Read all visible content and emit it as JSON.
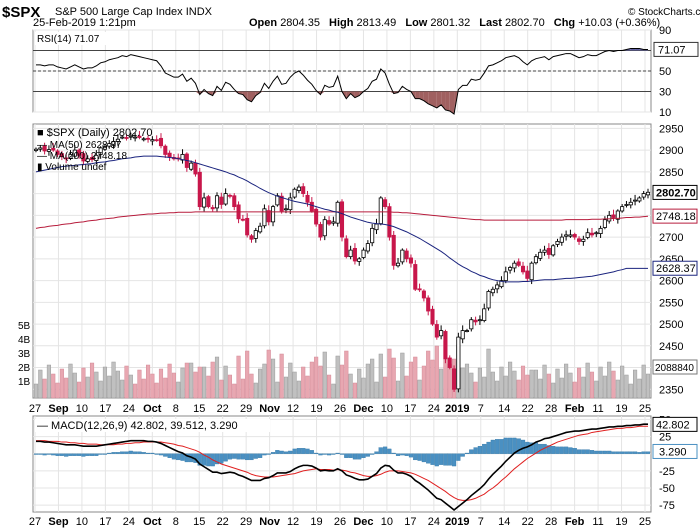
{
  "header": {
    "symbol": "$SPX",
    "name": "S&P 500 Large Cap Index",
    "exchange": "INDX",
    "date": "25-Feb-2019 1:21pm",
    "open_label": "Open",
    "open": "2804.35",
    "high_label": "High",
    "high": "2813.49",
    "low_label": "Low",
    "low": "2801.32",
    "last_label": "Last",
    "last": "2802.70",
    "chg_label": "Chg",
    "chg": "+10.03 (+0.36%)",
    "watermark": "© StockCharts.com"
  },
  "colors": {
    "up": "#ffffff",
    "down": "#c8174b",
    "ma50": "#1a237e",
    "ma200": "#b71c3c",
    "vol_up": "#c0c0c0",
    "vol_down": "#e8a7b1",
    "rsi_line": "#000000",
    "macd_line": "#000000",
    "signal_line": "#e02020",
    "hist": "#4a90c2"
  },
  "chart_data": {
    "type": "candlestick",
    "x_tick_labels": [
      "27",
      "Sep",
      "10",
      "17",
      "24",
      "Oct",
      "8",
      "15",
      "22",
      "29",
      "Nov",
      "12",
      "19",
      "26",
      "Dec",
      "10",
      "17",
      "24",
      "2019",
      "7",
      "14",
      "22",
      "28",
      "Feb",
      "11",
      "19",
      "25"
    ],
    "price_panel": {
      "legend": {
        "main": "$SPX (Daily) 2802.70",
        "ma50": "MA(50) 2628.37",
        "ma200": "MA(200) 2748.18",
        "volume": "Volume undef"
      },
      "y_ticks": [
        2350,
        2400,
        2450,
        2500,
        2550,
        2600,
        2650,
        2700,
        2750,
        2800,
        2850,
        2900,
        2950
      ],
      "y_range": [
        2330,
        2960
      ],
      "tags": {
        "last": "2802.70",
        "ma200": "2748.18",
        "ma50": "2628.37"
      },
      "volume_ticks": [
        "5B",
        "4B",
        "3B",
        "2B",
        "1B"
      ],
      "volume_tag": "2088840",
      "closes": [
        2902,
        2905,
        2898,
        2901,
        2900,
        2890,
        2885,
        2880,
        2890,
        2900,
        2888,
        2875,
        2880,
        2878,
        2888,
        2905,
        2908,
        2915,
        2920,
        2925,
        2930,
        2928,
        2932,
        2930,
        2929,
        2926,
        2925,
        2924,
        2923,
        2910,
        2890,
        2885,
        2880,
        2880,
        2890,
        2860,
        2870,
        2845,
        2770,
        2790,
        2770,
        2765,
        2795,
        2775,
        2800,
        2795,
        2770,
        2742,
        2740,
        2705,
        2695,
        2715,
        2725,
        2765,
        2735,
        2770,
        2795,
        2760,
        2765,
        2790,
        2810,
        2815,
        2800,
        2780,
        2760,
        2730,
        2700,
        2740,
        2730,
        2735,
        2780,
        2700,
        2655,
        2670,
        2645,
        2650,
        2670,
        2685,
        2720,
        2730,
        2790,
        2770,
        2700,
        2635,
        2640,
        2670,
        2650,
        2640,
        2580,
        2580,
        2560,
        2530,
        2500,
        2470,
        2485,
        2420,
        2400,
        2350,
        2470,
        2485,
        2485,
        2510,
        2505,
        2510,
        2535,
        2575,
        2580,
        2590,
        2600,
        2620,
        2630,
        2640,
        2635,
        2620,
        2605,
        2640,
        2655,
        2665,
        2670,
        2660,
        2680,
        2690,
        2700,
        2705,
        2705,
        2700,
        2690,
        2695,
        2710,
        2705,
        2710,
        2720,
        2740,
        2750,
        2745,
        2760,
        2770,
        2775,
        2780,
        2785,
        2790,
        2800,
        2803
      ],
      "ma50": [
        2850,
        2852,
        2854,
        2856,
        2858,
        2860,
        2862,
        2863,
        2864,
        2865,
        2866,
        2867,
        2868,
        2869,
        2871,
        2872,
        2873,
        2875,
        2876,
        2878,
        2880,
        2881,
        2882,
        2884,
        2885,
        2886,
        2886,
        2886,
        2886,
        2885,
        2884,
        2883,
        2882,
        2880,
        2878,
        2876,
        2874,
        2871,
        2868,
        2865,
        2862,
        2859,
        2856,
        2853,
        2850,
        2846,
        2843,
        2838,
        2834,
        2829,
        2823,
        2818,
        2812,
        2807,
        2802,
        2798,
        2794,
        2791,
        2788,
        2785,
        2782,
        2780,
        2778,
        2776,
        2773,
        2770,
        2767,
        2764,
        2762,
        2759,
        2757,
        2754,
        2750,
        2746,
        2743,
        2740,
        2737,
        2734,
        2732,
        2731,
        2730,
        2729,
        2727,
        2724,
        2720,
        2716,
        2712,
        2707,
        2702,
        2697,
        2691,
        2685,
        2679,
        2673,
        2667,
        2660,
        2652,
        2645,
        2638,
        2632,
        2627,
        2621,
        2617,
        2612,
        2609,
        2605,
        2602,
        2600,
        2598,
        2597,
        2597,
        2597,
        2597,
        2598,
        2598,
        2599,
        2600,
        2601,
        2602,
        2602,
        2602,
        2603,
        2604,
        2605,
        2605,
        2606,
        2607,
        2608,
        2609,
        2610,
        2612,
        2614,
        2616,
        2618,
        2620,
        2623,
        2625,
        2628,
        2628,
        2628,
        2628,
        2628,
        2628
      ],
      "ma200": [
        2720,
        2722,
        2723,
        2725,
        2726,
        2727,
        2729,
        2730,
        2731,
        2733,
        2734,
        2735,
        2737,
        2738,
        2739,
        2741,
        2742,
        2743,
        2744,
        2746,
        2747,
        2748,
        2749,
        2750,
        2751,
        2752,
        2753,
        2753,
        2754,
        2755,
        2755,
        2756,
        2756,
        2757,
        2757,
        2757,
        2757,
        2758,
        2758,
        2758,
        2758,
        2758,
        2758,
        2758,
        2758,
        2758,
        2758,
        2758,
        2758,
        2758,
        2758,
        2758,
        2758,
        2758,
        2758,
        2758,
        2758,
        2758,
        2758,
        2758,
        2758,
        2758,
        2758,
        2758,
        2758,
        2758,
        2758,
        2758,
        2758,
        2758,
        2758,
        2758,
        2758,
        2758,
        2758,
        2758,
        2758,
        2758,
        2758,
        2758,
        2758,
        2758,
        2758,
        2757,
        2757,
        2756,
        2756,
        2755,
        2754,
        2753,
        2752,
        2751,
        2750,
        2749,
        2748,
        2747,
        2746,
        2745,
        2744,
        2743,
        2742,
        2741,
        2740,
        2740,
        2739,
        2739,
        2739,
        2739,
        2739,
        2739,
        2739,
        2739,
        2739,
        2739,
        2739,
        2739,
        2739,
        2739,
        2739,
        2739,
        2739,
        2739,
        2739,
        2740,
        2740,
        2740,
        2740,
        2740,
        2740,
        2741,
        2741,
        2741,
        2742,
        2742,
        2743,
        2743,
        2744,
        2745,
        2745,
        2746,
        2746,
        2747,
        2748
      ]
    },
    "rsi_panel": {
      "legend": "RSI(14) 71.07",
      "y_ticks": [
        90,
        70,
        50,
        30,
        10
      ],
      "tag": "71.07",
      "values": [
        56,
        56,
        55,
        56,
        56,
        54,
        53,
        52,
        54,
        56,
        54,
        52,
        53,
        53,
        55,
        58,
        59,
        61,
        62,
        63,
        65,
        64,
        66,
        65,
        64,
        63,
        62,
        61,
        60,
        55,
        48,
        46,
        44,
        44,
        47,
        40,
        43,
        38,
        27,
        32,
        28,
        26,
        35,
        31,
        39,
        37,
        32,
        28,
        27,
        22,
        20,
        26,
        29,
        38,
        33,
        40,
        45,
        37,
        38,
        44,
        48,
        50,
        46,
        41,
        37,
        31,
        27,
        36,
        34,
        35,
        45,
        30,
        23,
        28,
        24,
        26,
        30,
        33,
        40,
        42,
        52,
        48,
        37,
        28,
        29,
        35,
        32,
        30,
        23,
        23,
        21,
        18,
        16,
        14,
        17,
        12,
        11,
        8,
        32,
        36,
        36,
        42,
        41,
        42,
        48,
        55,
        56,
        58,
        60,
        63,
        64,
        65,
        63,
        59,
        56,
        60,
        62,
        63,
        64,
        61,
        64,
        65,
        66,
        67,
        67,
        65,
        63,
        64,
        66,
        65,
        65,
        67,
        69,
        70,
        69,
        70,
        70,
        71,
        72,
        72,
        72,
        71,
        71
      ]
    },
    "macd_panel": {
      "legend": "MACD(12,26,9) 42.802, 39.512, 3.290",
      "y_ticks": [
        50,
        25,
        0,
        -25,
        -50,
        -75
      ],
      "tags": {
        "macd": "42.802",
        "hist": "3.290"
      },
      "macd": [
        18,
        18,
        17,
        17,
        16,
        15,
        14,
        13,
        13,
        13,
        12,
        11,
        11,
        11,
        11,
        12,
        13,
        14,
        15,
        16,
        17,
        18,
        19,
        19,
        19,
        19,
        18,
        18,
        17,
        15,
        12,
        9,
        6,
        3,
        1,
        -3,
        -5,
        -8,
        -15,
        -19,
        -23,
        -27,
        -27,
        -29,
        -28,
        -27,
        -28,
        -31,
        -33,
        -36,
        -39,
        -39,
        -39,
        -36,
        -35,
        -32,
        -28,
        -28,
        -28,
        -26,
        -22,
        -19,
        -17,
        -17,
        -18,
        -21,
        -25,
        -24,
        -25,
        -25,
        -22,
        -25,
        -31,
        -33,
        -36,
        -38,
        -38,
        -37,
        -33,
        -29,
        -21,
        -17,
        -18,
        -24,
        -28,
        -28,
        -30,
        -33,
        -39,
        -43,
        -48,
        -53,
        -59,
        -65,
        -67,
        -72,
        -77,
        -82,
        -77,
        -72,
        -67,
        -61,
        -56,
        -51,
        -45,
        -37,
        -30,
        -24,
        -18,
        -11,
        -5,
        1,
        5,
        8,
        10,
        13,
        17,
        19,
        22,
        23,
        25,
        27,
        29,
        31,
        32,
        33,
        33,
        34,
        35,
        36,
        36,
        37,
        38,
        39,
        39,
        40,
        40,
        41,
        41,
        42,
        42,
        43,
        43
      ],
      "signal": [
        19,
        19,
        19,
        18,
        18,
        18,
        17,
        17,
        16,
        16,
        15,
        15,
        14,
        14,
        14,
        13,
        13,
        13,
        13,
        14,
        14,
        15,
        15,
        16,
        16,
        17,
        17,
        17,
        17,
        17,
        16,
        15,
        14,
        12,
        11,
        9,
        7,
        5,
        2,
        -2,
        -5,
        -9,
        -12,
        -15,
        -17,
        -19,
        -21,
        -23,
        -25,
        -27,
        -30,
        -32,
        -33,
        -34,
        -34,
        -34,
        -33,
        -32,
        -31,
        -30,
        -29,
        -27,
        -25,
        -24,
        -23,
        -22,
        -23,
        -23,
        -23,
        -24,
        -23,
        -24,
        -25,
        -27,
        -28,
        -30,
        -32,
        -33,
        -33,
        -32,
        -30,
        -27,
        -25,
        -25,
        -25,
        -26,
        -27,
        -28,
        -30,
        -33,
        -36,
        -39,
        -43,
        -47,
        -51,
        -55,
        -60,
        -64,
        -67,
        -68,
        -68,
        -67,
        -65,
        -62,
        -59,
        -54,
        -50,
        -45,
        -39,
        -34,
        -28,
        -22,
        -17,
        -12,
        -7,
        -3,
        1,
        5,
        8,
        11,
        14,
        17,
        19,
        21,
        23,
        25,
        27,
        28,
        29,
        31,
        32,
        33,
        34,
        35,
        36,
        37,
        37,
        38,
        38,
        39,
        40,
        40,
        40
      ]
    }
  }
}
